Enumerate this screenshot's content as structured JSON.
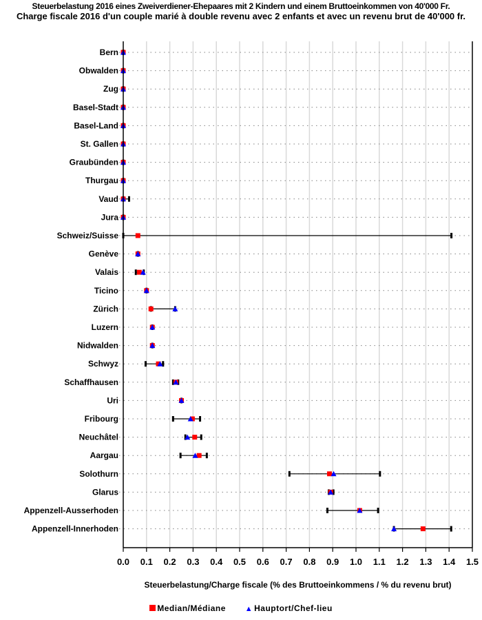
{
  "chart_data": {
    "type": "dot-range",
    "title": "Steuerbelastung 2016 eines Zweiverdiener-Ehepaares mit 2 Kindern und einem Bruttoeinkommen von 40'000 Fr.",
    "subtitle": "Charge fiscale 2016 d'un couple marié à double revenu avec 2 enfants et avec un revenu brut de 40'000 fr.",
    "xlabel": "Steuerbelastung/Charge fiscale (% des Bruttoeinkommens / % du revenu brut)",
    "ylabel": "",
    "xlim": [
      0,
      1.5
    ],
    "xticks": [
      "0.0",
      "0.1",
      "0.2",
      "0.3",
      "0.4",
      "0.5",
      "0.6",
      "0.7",
      "0.8",
      "0.9",
      "1.0",
      "1.1",
      "1.2",
      "1.3",
      "1.4",
      "1.5"
    ],
    "grid": "vertical",
    "legend_position": "bottom",
    "legend": [
      {
        "name": "Median/Médiane",
        "marker": "square",
        "color": "#ff0000"
      },
      {
        "name": "Hauptort/Chef-lieu",
        "marker": "triangle",
        "color": "#0000ff"
      }
    ],
    "range_color": "#000000",
    "rows": [
      {
        "label": "Bern",
        "min": 0,
        "max": 0,
        "median": 0,
        "hauptort": 0
      },
      {
        "label": "Obwalden",
        "min": 0,
        "max": 0,
        "median": 0,
        "hauptort": 0
      },
      {
        "label": "Zug",
        "min": 0,
        "max": 0,
        "median": 0,
        "hauptort": 0
      },
      {
        "label": "Basel-Stadt",
        "min": 0,
        "max": 0,
        "median": 0,
        "hauptort": 0
      },
      {
        "label": "Basel-Land",
        "min": 0,
        "max": 0,
        "median": 0,
        "hauptort": 0
      },
      {
        "label": "St. Gallen",
        "min": 0,
        "max": 0,
        "median": 0,
        "hauptort": 0
      },
      {
        "label": "Graubünden",
        "min": 0,
        "max": 0,
        "median": 0,
        "hauptort": 0
      },
      {
        "label": "Thurgau",
        "min": 0,
        "max": 0,
        "median": 0,
        "hauptort": 0
      },
      {
        "label": "Vaud",
        "min": 0,
        "max": 0.025,
        "median": 0,
        "hauptort": 0
      },
      {
        "label": "Jura",
        "min": 0,
        "max": 0,
        "median": 0,
        "hauptort": 0
      },
      {
        "label": "Schweiz/Suisse",
        "min": 0,
        "max": 1.41,
        "median": 0.063,
        "hauptort": null
      },
      {
        "label": "Genève",
        "min": 0.063,
        "max": 0.063,
        "median": 0.063,
        "hauptort": 0.063
      },
      {
        "label": "Valais",
        "min": 0.054,
        "max": 0.088,
        "median": 0.069,
        "hauptort": 0.085
      },
      {
        "label": "Ticino",
        "min": 0.1,
        "max": 0.1,
        "median": 0.1,
        "hauptort": 0.1
      },
      {
        "label": "Zürich",
        "min": 0.119,
        "max": 0.223,
        "median": 0.119,
        "hauptort": 0.223
      },
      {
        "label": "Luzern",
        "min": 0.125,
        "max": 0.125,
        "median": 0.125,
        "hauptort": 0.125
      },
      {
        "label": "Nidwalden",
        "min": 0.125,
        "max": 0.125,
        "median": 0.125,
        "hauptort": 0.125
      },
      {
        "label": "Schwyz",
        "min": 0.096,
        "max": 0.171,
        "median": 0.151,
        "hauptort": 0.158
      },
      {
        "label": "Schaffhausen",
        "min": 0.214,
        "max": 0.236,
        "median": 0.226,
        "hauptort": 0.226
      },
      {
        "label": "Uri",
        "min": 0.25,
        "max": 0.25,
        "median": 0.25,
        "hauptort": 0.25
      },
      {
        "label": "Fribourg",
        "min": 0.214,
        "max": 0.33,
        "median": 0.297,
        "hauptort": 0.289
      },
      {
        "label": "Neuchâtel",
        "min": 0.267,
        "max": 0.335,
        "median": 0.307,
        "hauptort": 0.276
      },
      {
        "label": "Aargau",
        "min": 0.246,
        "max": 0.359,
        "median": 0.326,
        "hauptort": 0.309
      },
      {
        "label": "Solothurn",
        "min": 0.714,
        "max": 1.103,
        "median": 0.886,
        "hauptort": 0.904
      },
      {
        "label": "Glarus",
        "min": 0.883,
        "max": 0.903,
        "median": 0.891,
        "hauptort": 0.891
      },
      {
        "label": "Appenzell-Ausserhoden",
        "min": 0.877,
        "max": 1.095,
        "median": 1.016,
        "hauptort": 1.016
      },
      {
        "label": "Appenzell-Innerhoden",
        "min": 1.163,
        "max": 1.409,
        "median": 1.288,
        "hauptort": 1.163
      }
    ]
  }
}
